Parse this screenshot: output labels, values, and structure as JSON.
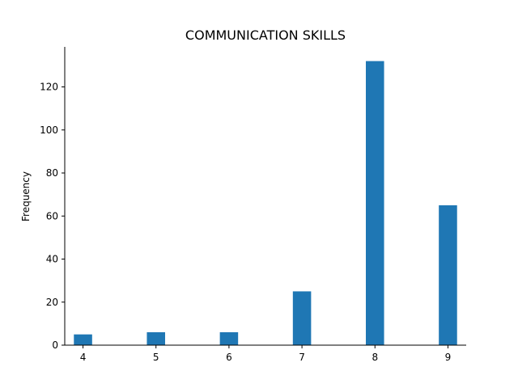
{
  "chart_data": {
    "type": "bar",
    "title": "COMMUNICATION SKILLS",
    "xlabel": "",
    "ylabel": "Frequency",
    "x": [
      4,
      5,
      6,
      7,
      8,
      9
    ],
    "values": [
      5,
      6,
      6,
      25,
      132,
      65
    ],
    "xlim": [
      3.75,
      9.25
    ],
    "ylim": [
      0,
      138.6
    ],
    "xticks": [
      4,
      5,
      6,
      7,
      8,
      9
    ],
    "yticks": [
      0,
      20,
      40,
      60,
      80,
      100,
      120
    ],
    "bar_width": 0.25,
    "grid": false,
    "legend": "none",
    "bar_color": "#1f77b4"
  }
}
